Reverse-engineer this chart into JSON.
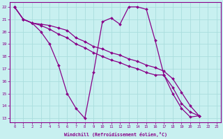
{
  "xlabel": "Windchill (Refroidissement éolien,°C)",
  "background_color": "#c8f0f0",
  "line_color": "#880088",
  "grid_color": "#aadddd",
  "xlim": [
    -0.5,
    23.5
  ],
  "ylim": [
    12.7,
    22.4
  ],
  "yticks": [
    13,
    14,
    15,
    16,
    17,
    18,
    19,
    20,
    21,
    22
  ],
  "xticks": [
    0,
    1,
    2,
    3,
    4,
    5,
    6,
    7,
    8,
    9,
    10,
    11,
    12,
    13,
    14,
    15,
    16,
    17,
    18,
    19,
    20,
    21,
    22,
    23
  ],
  "series": [
    [
      22,
      21,
      20.7,
      20,
      19,
      17.3,
      15,
      13.8,
      13,
      16.7,
      20.8,
      21.1,
      20.6,
      22,
      22,
      21.8,
      19.3,
      16.5,
      15.0,
      13.8,
      13.1,
      13.2
    ],
    [
      22,
      21,
      20.7,
      20.5,
      20.2,
      19.8,
      19.5,
      19.0,
      18.7,
      18.3,
      18.0,
      17.7,
      17.5,
      17.2,
      17.0,
      16.7,
      16.5,
      16.5,
      15.5,
      14.2,
      13.5,
      13.2
    ],
    [
      22,
      21,
      20.7,
      20.6,
      20.5,
      20.3,
      20.1,
      19.5,
      19.2,
      18.8,
      18.6,
      18.3,
      18.1,
      17.8,
      17.6,
      17.3,
      17.1,
      16.8,
      16.2,
      15.1,
      14.0,
      13.2
    ]
  ]
}
